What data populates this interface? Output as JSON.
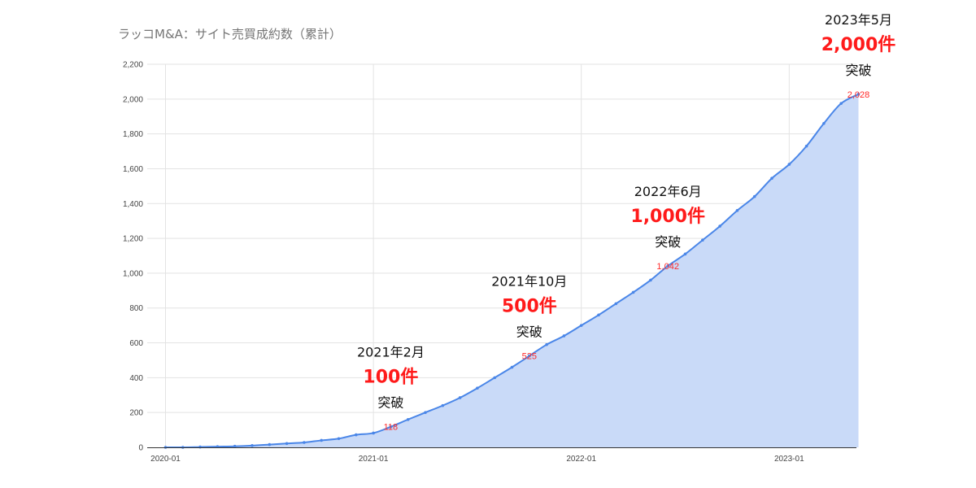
{
  "chart_data": {
    "type": "area",
    "title": "ラッコM&A：サイト売買成約数（累計）",
    "xlabel": "",
    "ylabel": "",
    "x_ticks": [
      "2020-01",
      "2021-01",
      "2022-01",
      "2023-01"
    ],
    "y_ticks": [
      "0",
      "200",
      "400",
      "600",
      "800",
      "1,000",
      "1,200",
      "1,400",
      "1,600",
      "1,800",
      "2,000",
      "2,200"
    ],
    "ylim": [
      0,
      2200
    ],
    "grid": true,
    "legend": "none",
    "colors": {
      "line": "#4a86e8",
      "fill": "#c9daf8",
      "label": "#ff2a2a",
      "highlight": "#ff1a1a"
    },
    "series": [
      {
        "x": [
          "2020-01",
          "2020-02",
          "2020-03",
          "2020-04",
          "2020-05",
          "2020-06",
          "2020-07",
          "2020-08",
          "2020-09",
          "2020-10",
          "2020-11",
          "2020-12",
          "2021-01",
          "2021-02",
          "2021-03",
          "2021-04",
          "2021-05",
          "2021-06",
          "2021-07",
          "2021-08",
          "2021-09",
          "2021-10",
          "2021-11",
          "2021-12",
          "2022-01",
          "2022-02",
          "2022-03",
          "2022-04",
          "2022-05",
          "2022-06",
          "2022-07",
          "2022-08",
          "2022-09",
          "2022-10",
          "2022-11",
          "2022-12",
          "2023-01",
          "2023-02",
          "2023-03",
          "2023-04",
          "2023-05"
        ],
        "values": [
          0,
          0,
          2,
          4,
          6,
          10,
          16,
          22,
          28,
          40,
          50,
          72,
          82,
          118,
          160,
          200,
          240,
          285,
          340,
          400,
          460,
          525,
          590,
          640,
          700,
          760,
          825,
          890,
          960,
          1042,
          1110,
          1190,
          1270,
          1360,
          1440,
          1545,
          1625,
          1730,
          1860,
          1975,
          2028
        ]
      }
    ],
    "data_labels": [
      {
        "x": "2021-02",
        "text": "118"
      },
      {
        "x": "2021-10",
        "text": "525"
      },
      {
        "x": "2022-06",
        "text": "1,042"
      },
      {
        "x": "2023-05",
        "text": "2,028"
      }
    ],
    "annotations": [
      {
        "x": "2021-02",
        "date": "2021年2月",
        "count": "100件",
        "suffix": "突破"
      },
      {
        "x": "2021-10",
        "date": "2021年10月",
        "count": "500件",
        "suffix": "突破"
      },
      {
        "x": "2022-06",
        "date": "2022年6月",
        "count": "1,000件",
        "suffix": "突破"
      },
      {
        "x": "2023-05",
        "date": "2023年5月",
        "count": "2,000件",
        "suffix": "突破"
      }
    ]
  }
}
